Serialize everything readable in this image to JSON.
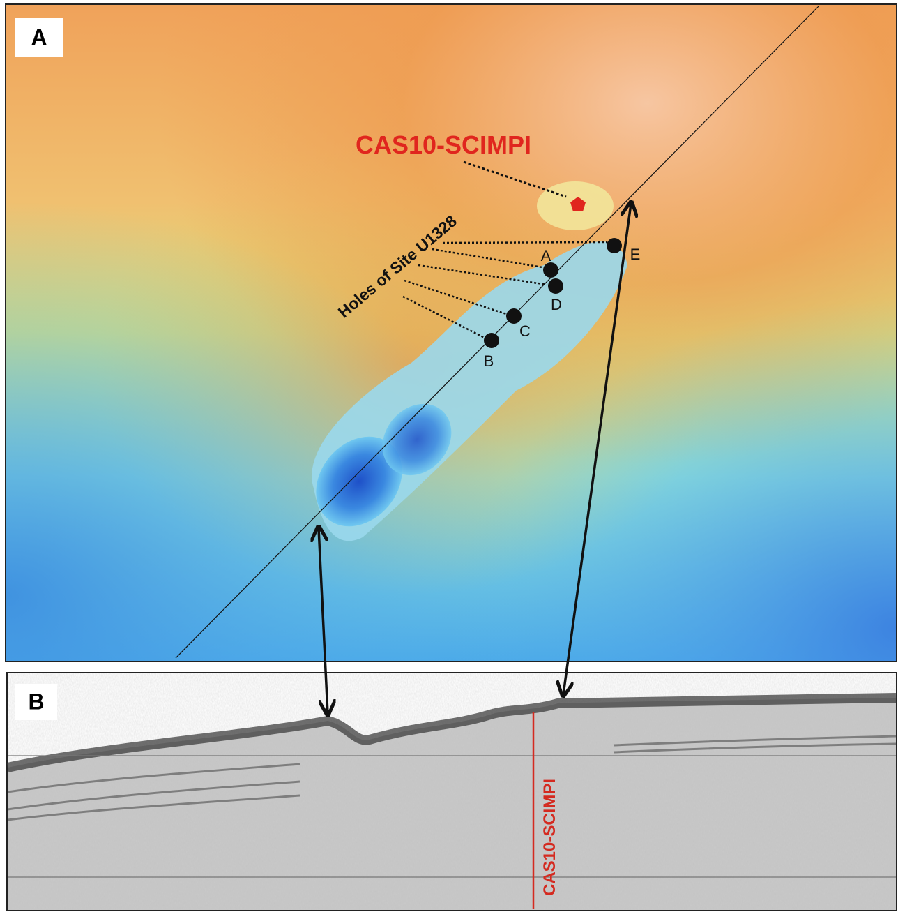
{
  "panels": [
    {
      "label": "A",
      "annotation": "CAS10-SCIMPI",
      "holes_label": "Holes of Site U1328",
      "holes": [
        "A",
        "B",
        "C",
        "D",
        "E"
      ]
    },
    {
      "label": "B",
      "annotation": "CAS10-SCIMPI"
    }
  ]
}
